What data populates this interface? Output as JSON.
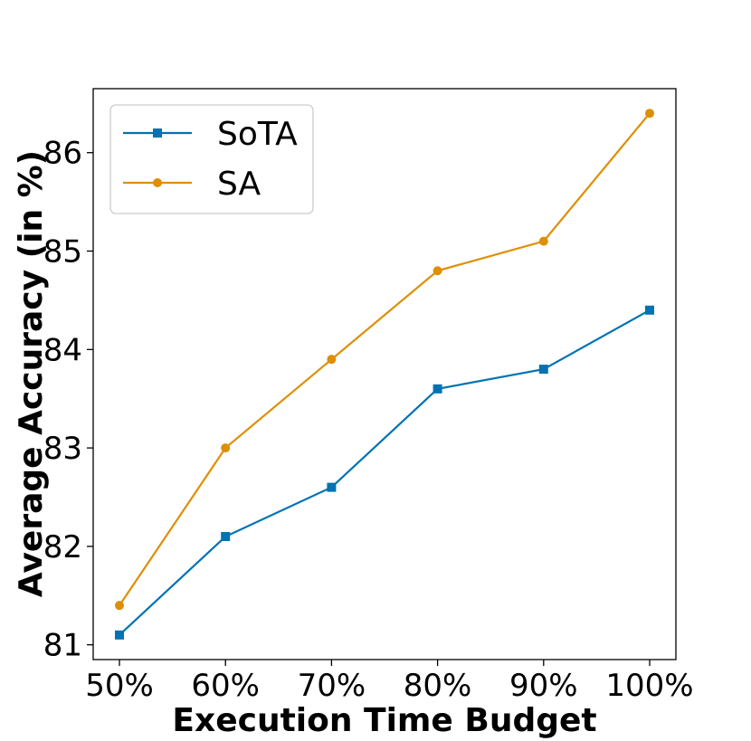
{
  "chart_data": {
    "type": "line",
    "title": "",
    "xlabel": "Execution Time Budget",
    "ylabel": "Average Accuracy (in %)",
    "categories": [
      "50%",
      "60%",
      "70%",
      "80%",
      "90%",
      "100%"
    ],
    "ylim": [
      80.85,
      86.65
    ],
    "yticks": [
      81,
      82,
      83,
      84,
      85,
      86
    ],
    "grid": false,
    "legend_position": "top-left",
    "series": [
      {
        "name": "SoTA",
        "values": [
          81.1,
          82.1,
          82.6,
          83.6,
          83.8,
          84.4
        ],
        "color": "#0173b2",
        "marker": "square"
      },
      {
        "name": "SA",
        "values": [
          81.4,
          83.0,
          83.9,
          84.8,
          85.1,
          86.4
        ],
        "color": "#de8f05",
        "marker": "circle"
      }
    ]
  }
}
